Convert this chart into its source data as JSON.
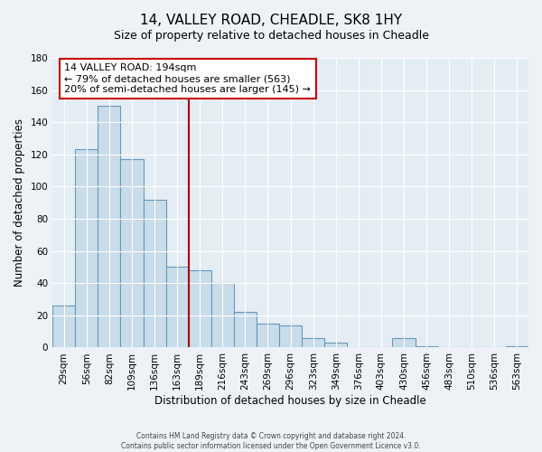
{
  "title": "14, VALLEY ROAD, CHEADLE, SK8 1HY",
  "subtitle": "Size of property relative to detached houses in Cheadle",
  "xlabel": "Distribution of detached houses by size in Cheadle",
  "ylabel": "Number of detached properties",
  "bin_labels": [
    "29sqm",
    "56sqm",
    "82sqm",
    "109sqm",
    "136sqm",
    "163sqm",
    "189sqm",
    "216sqm",
    "243sqm",
    "269sqm",
    "296sqm",
    "323sqm",
    "349sqm",
    "376sqm",
    "403sqm",
    "430sqm",
    "456sqm",
    "483sqm",
    "510sqm",
    "536sqm",
    "563sqm"
  ],
  "bar_heights": [
    26,
    123,
    150,
    117,
    92,
    50,
    48,
    40,
    22,
    15,
    14,
    6,
    3,
    0,
    0,
    6,
    1,
    0,
    0,
    0,
    1
  ],
  "bar_color": "#c8dcea",
  "bar_edge_color": "#6699bb",
  "ylim": [
    0,
    180
  ],
  "yticks": [
    0,
    20,
    40,
    60,
    80,
    100,
    120,
    140,
    160,
    180
  ],
  "annotation_title": "14 VALLEY ROAD: 194sqm",
  "annotation_line1": "← 79% of detached houses are smaller (563)",
  "annotation_line2": "20% of semi-detached houses are larger (145) →",
  "vline_x": 5.5,
  "vline_color": "#aa0000",
  "footer_line1": "Contains HM Land Registry data © Crown copyright and database right 2024.",
  "footer_line2": "Contains public sector information licensed under the Open Government Licence v3.0.",
  "bg_color": "#eef2f7",
  "plot_bg_color": "#e4ecf4",
  "title_fontsize": 11,
  "subtitle_fontsize": 9,
  "axis_label_fontsize": 8.5,
  "tick_fontsize": 7.5
}
